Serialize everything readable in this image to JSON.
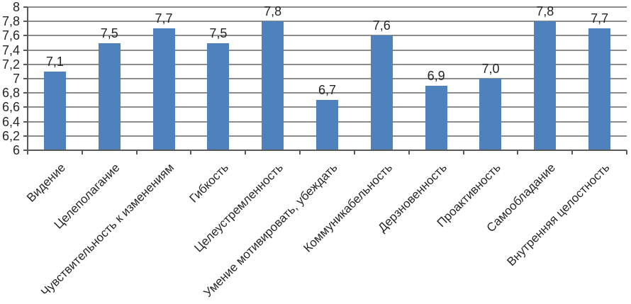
{
  "chart_data": {
    "type": "bar",
    "title": "",
    "xlabel": "",
    "ylabel": "",
    "categories": [
      "Видение",
      "Целеполагание",
      "Чувствительность к изменениям",
      "Гибкость",
      "Целеустремленность",
      "Умение мотивировать, убеждать",
      "Коммуникабельность",
      "Дерзновенность",
      "Проактивность",
      "Самообладание",
      "Внутренняя целостность"
    ],
    "values": [
      7.1,
      7.5,
      7.7,
      7.5,
      7.8,
      6.7,
      7.6,
      6.9,
      7.0,
      7.8,
      7.7
    ],
    "value_labels": [
      "7,1",
      "7,5",
      "7,7",
      "7,5",
      "7,8",
      "6,7",
      "7,6",
      "6,9",
      "7,0",
      "7,8",
      "7,7"
    ],
    "y_tick_labels": [
      "8",
      "7,8",
      "7,6",
      "7,4",
      "7,2",
      "7",
      "6,8",
      "6,6",
      "6,4",
      "6,2",
      "6"
    ],
    "ylim": [
      6,
      8
    ],
    "y_step": 0.2,
    "grid": true,
    "legend": "none",
    "colors": {
      "bar_fill": "#4f81bd",
      "gridline": "#8c8c8c",
      "axis": "#595959",
      "text": "#262626"
    }
  }
}
